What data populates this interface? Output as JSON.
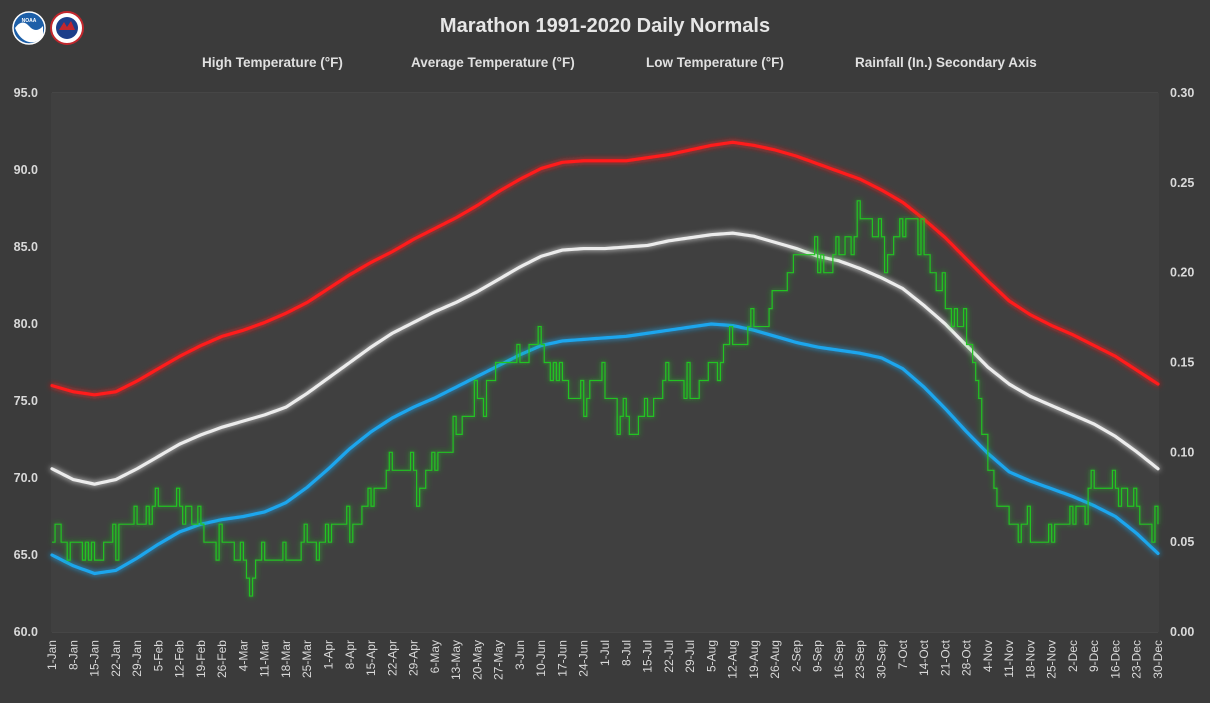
{
  "chart_data": {
    "type": "line",
    "title": "Marathon 1991-2020 Daily Normals",
    "legend_position": "top",
    "grid": true,
    "y_left": {
      "range": [
        60,
        95
      ],
      "ticks": [
        "95.0",
        "90.0",
        "85.0",
        "80.0",
        "75.0",
        "70.0",
        "65.0",
        "60.0"
      ]
    },
    "y_right": {
      "range": [
        0,
        0.3
      ],
      "ticks": [
        "0.30",
        "0.25",
        "0.20",
        "0.15",
        "0.10",
        "0.05",
        "0.00"
      ]
    },
    "x_ticks": [
      "1-Jan",
      "8-Jan",
      "15-Jan",
      "22-Jan",
      "29-Jan",
      "5-Feb",
      "12-Feb",
      "19-Feb",
      "26-Feb",
      "4-Mar",
      "11-Mar",
      "18-Mar",
      "25-Mar",
      "1-Apr",
      "8-Apr",
      "15-Apr",
      "22-Apr",
      "29-Apr",
      "6-May",
      "13-May",
      "20-May",
      "27-May",
      "3-Jun",
      "10-Jun",
      "17-Jun",
      "24-Jun",
      "1-Jul",
      "8-Jul",
      "15-Jul",
      "22-Jul",
      "29-Jul",
      "5-Aug",
      "12-Aug",
      "19-Aug",
      "26-Aug",
      "2-Sep",
      "9-Sep",
      "16-Sep",
      "23-Sep",
      "30-Sep",
      "7-Oct",
      "14-Oct",
      "21-Oct",
      "28-Oct",
      "4-Nov",
      "11-Nov",
      "18-Nov",
      "25-Nov",
      "2-Dec",
      "9-Dec",
      "16-Dec",
      "23-Dec",
      "30-Dec"
    ],
    "series": [
      {
        "name": "High Temperature (°F)",
        "color": "#ff1a1a",
        "axis": "left",
        "keypoints": [
          [
            1,
            76.0
          ],
          [
            8,
            75.6
          ],
          [
            15,
            75.4
          ],
          [
            22,
            75.6
          ],
          [
            29,
            76.3
          ],
          [
            36,
            77.1
          ],
          [
            43,
            77.9
          ],
          [
            50,
            78.6
          ],
          [
            57,
            79.2
          ],
          [
            64,
            79.6
          ],
          [
            71,
            80.1
          ],
          [
            78,
            80.7
          ],
          [
            85,
            81.4
          ],
          [
            92,
            82.3
          ],
          [
            99,
            83.2
          ],
          [
            106,
            84.0
          ],
          [
            113,
            84.7
          ],
          [
            120,
            85.5
          ],
          [
            127,
            86.2
          ],
          [
            134,
            86.9
          ],
          [
            141,
            87.7
          ],
          [
            148,
            88.6
          ],
          [
            155,
            89.4
          ],
          [
            162,
            90.1
          ],
          [
            169,
            90.5
          ],
          [
            176,
            90.6
          ],
          [
            183,
            90.6
          ],
          [
            190,
            90.6
          ],
          [
            197,
            90.8
          ],
          [
            204,
            91.0
          ],
          [
            211,
            91.3
          ],
          [
            218,
            91.6
          ],
          [
            225,
            91.8
          ],
          [
            232,
            91.6
          ],
          [
            239,
            91.3
          ],
          [
            246,
            90.9
          ],
          [
            253,
            90.4
          ],
          [
            260,
            89.9
          ],
          [
            267,
            89.4
          ],
          [
            274,
            88.7
          ],
          [
            281,
            87.9
          ],
          [
            288,
            86.8
          ],
          [
            295,
            85.6
          ],
          [
            302,
            84.2
          ],
          [
            309,
            82.8
          ],
          [
            316,
            81.5
          ],
          [
            323,
            80.6
          ],
          [
            330,
            79.9
          ],
          [
            337,
            79.3
          ],
          [
            344,
            78.6
          ],
          [
            351,
            77.9
          ],
          [
            358,
            77.0
          ],
          [
            365,
            76.1
          ]
        ]
      },
      {
        "name": "Average Temperature (°F)",
        "color": "#ececec",
        "axis": "left",
        "keypoints": [
          [
            1,
            70.6
          ],
          [
            8,
            69.9
          ],
          [
            15,
            69.6
          ],
          [
            22,
            69.9
          ],
          [
            29,
            70.6
          ],
          [
            36,
            71.4
          ],
          [
            43,
            72.2
          ],
          [
            50,
            72.8
          ],
          [
            57,
            73.3
          ],
          [
            64,
            73.7
          ],
          [
            71,
            74.1
          ],
          [
            78,
            74.6
          ],
          [
            85,
            75.5
          ],
          [
            92,
            76.5
          ],
          [
            99,
            77.5
          ],
          [
            106,
            78.5
          ],
          [
            113,
            79.4
          ],
          [
            120,
            80.1
          ],
          [
            127,
            80.8
          ],
          [
            134,
            81.4
          ],
          [
            141,
            82.1
          ],
          [
            148,
            82.9
          ],
          [
            155,
            83.7
          ],
          [
            162,
            84.4
          ],
          [
            169,
            84.8
          ],
          [
            176,
            84.9
          ],
          [
            183,
            84.9
          ],
          [
            190,
            85.0
          ],
          [
            197,
            85.1
          ],
          [
            204,
            85.4
          ],
          [
            211,
            85.6
          ],
          [
            218,
            85.8
          ],
          [
            225,
            85.9
          ],
          [
            232,
            85.7
          ],
          [
            239,
            85.3
          ],
          [
            246,
            84.9
          ],
          [
            253,
            84.4
          ],
          [
            260,
            84.1
          ],
          [
            267,
            83.6
          ],
          [
            274,
            83.0
          ],
          [
            281,
            82.3
          ],
          [
            288,
            81.2
          ],
          [
            295,
            80.0
          ],
          [
            302,
            78.6
          ],
          [
            309,
            77.2
          ],
          [
            316,
            76.1
          ],
          [
            323,
            75.3
          ],
          [
            330,
            74.7
          ],
          [
            337,
            74.1
          ],
          [
            344,
            73.5
          ],
          [
            351,
            72.7
          ],
          [
            358,
            71.7
          ],
          [
            365,
            70.6
          ]
        ]
      },
      {
        "name": "Low Temperature (°F)",
        "color": "#1fa6ee",
        "axis": "left",
        "keypoints": [
          [
            1,
            65.0
          ],
          [
            8,
            64.3
          ],
          [
            15,
            63.8
          ],
          [
            22,
            64.0
          ],
          [
            29,
            64.8
          ],
          [
            36,
            65.7
          ],
          [
            43,
            66.5
          ],
          [
            50,
            67.0
          ],
          [
            57,
            67.3
          ],
          [
            64,
            67.5
          ],
          [
            71,
            67.8
          ],
          [
            78,
            68.4
          ],
          [
            85,
            69.4
          ],
          [
            92,
            70.6
          ],
          [
            99,
            71.9
          ],
          [
            106,
            73.0
          ],
          [
            113,
            73.9
          ],
          [
            120,
            74.6
          ],
          [
            127,
            75.2
          ],
          [
            134,
            75.9
          ],
          [
            141,
            76.6
          ],
          [
            148,
            77.3
          ],
          [
            155,
            78.0
          ],
          [
            162,
            78.6
          ],
          [
            169,
            78.9
          ],
          [
            176,
            79.0
          ],
          [
            183,
            79.1
          ],
          [
            190,
            79.2
          ],
          [
            197,
            79.4
          ],
          [
            204,
            79.6
          ],
          [
            211,
            79.8
          ],
          [
            218,
            80.0
          ],
          [
            225,
            79.9
          ],
          [
            232,
            79.6
          ],
          [
            239,
            79.2
          ],
          [
            246,
            78.8
          ],
          [
            253,
            78.5
          ],
          [
            260,
            78.3
          ],
          [
            267,
            78.1
          ],
          [
            274,
            77.8
          ],
          [
            281,
            77.1
          ],
          [
            288,
            75.9
          ],
          [
            295,
            74.5
          ],
          [
            302,
            73.0
          ],
          [
            309,
            71.6
          ],
          [
            316,
            70.4
          ],
          [
            323,
            69.8
          ],
          [
            330,
            69.3
          ],
          [
            337,
            68.8
          ],
          [
            344,
            68.2
          ],
          [
            351,
            67.5
          ],
          [
            358,
            66.4
          ],
          [
            365,
            65.1
          ]
        ]
      },
      {
        "name": "Rainfall (In.) Secondary Axis",
        "color": "#22c422",
        "axis": "right",
        "keypoints": [
          [
            1,
            0.05
          ],
          [
            3,
            0.06
          ],
          [
            6,
            0.04
          ],
          [
            10,
            0.05
          ],
          [
            15,
            0.04
          ],
          [
            20,
            0.05
          ],
          [
            25,
            0.06
          ],
          [
            30,
            0.06
          ],
          [
            33,
            0.07
          ],
          [
            40,
            0.07
          ],
          [
            45,
            0.07
          ],
          [
            48,
            0.06
          ],
          [
            52,
            0.05
          ],
          [
            58,
            0.05
          ],
          [
            62,
            0.04
          ],
          [
            66,
            0.03
          ],
          [
            70,
            0.04
          ],
          [
            75,
            0.04
          ],
          [
            80,
            0.04
          ],
          [
            85,
            0.05
          ],
          [
            90,
            0.05
          ],
          [
            95,
            0.06
          ],
          [
            100,
            0.06
          ],
          [
            105,
            0.07
          ],
          [
            108,
            0.08
          ],
          [
            112,
            0.09
          ],
          [
            118,
            0.09
          ],
          [
            122,
            0.08
          ],
          [
            126,
            0.09
          ],
          [
            130,
            0.1
          ],
          [
            134,
            0.11
          ],
          [
            138,
            0.12
          ],
          [
            142,
            0.13
          ],
          [
            146,
            0.14
          ],
          [
            150,
            0.15
          ],
          [
            155,
            0.15
          ],
          [
            160,
            0.16
          ],
          [
            164,
            0.15
          ],
          [
            168,
            0.14
          ],
          [
            172,
            0.13
          ],
          [
            176,
            0.13
          ],
          [
            180,
            0.14
          ],
          [
            184,
            0.13
          ],
          [
            188,
            0.12
          ],
          [
            192,
            0.11
          ],
          [
            196,
            0.12
          ],
          [
            200,
            0.13
          ],
          [
            204,
            0.14
          ],
          [
            208,
            0.14
          ],
          [
            212,
            0.13
          ],
          [
            216,
            0.14
          ],
          [
            220,
            0.15
          ],
          [
            224,
            0.16
          ],
          [
            228,
            0.16
          ],
          [
            232,
            0.17
          ],
          [
            236,
            0.17
          ],
          [
            240,
            0.19
          ],
          [
            244,
            0.2
          ],
          [
            248,
            0.21
          ],
          [
            252,
            0.21
          ],
          [
            256,
            0.2
          ],
          [
            260,
            0.21
          ],
          [
            264,
            0.22
          ],
          [
            268,
            0.23
          ],
          [
            272,
            0.22
          ],
          [
            276,
            0.21
          ],
          [
            280,
            0.22
          ],
          [
            284,
            0.23
          ],
          [
            288,
            0.21
          ],
          [
            292,
            0.19
          ],
          [
            296,
            0.18
          ],
          [
            300,
            0.17
          ],
          [
            304,
            0.15
          ],
          [
            308,
            0.1
          ],
          [
            312,
            0.07
          ],
          [
            316,
            0.06
          ],
          [
            320,
            0.06
          ],
          [
            324,
            0.05
          ],
          [
            328,
            0.05
          ],
          [
            332,
            0.06
          ],
          [
            336,
            0.06
          ],
          [
            340,
            0.07
          ],
          [
            344,
            0.08
          ],
          [
            348,
            0.08
          ],
          [
            352,
            0.08
          ],
          [
            356,
            0.07
          ],
          [
            360,
            0.06
          ],
          [
            365,
            0.06
          ]
        ]
      }
    ]
  }
}
